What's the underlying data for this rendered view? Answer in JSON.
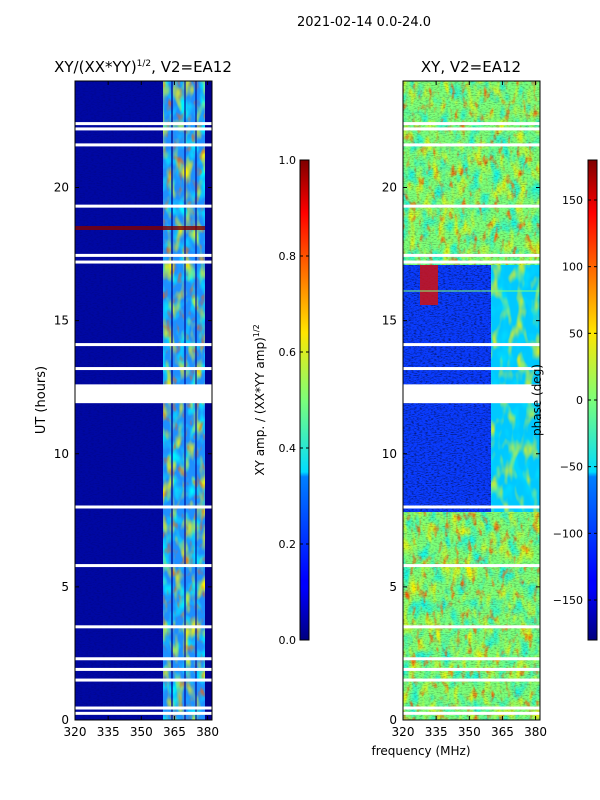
{
  "figure_title": "2021-02-14 0.0-24.0",
  "shared_xlabel": "frequency (MHz)",
  "chart_data": [
    {
      "type": "heatmap",
      "title_main": "XY/(XX*YY)",
      "title_exp": "1/2",
      "title_tail": ", V2=EA12",
      "xlabel": "",
      "ylabel": "UT (hours)",
      "xlim": [
        320,
        382
      ],
      "ylim": [
        0,
        24
      ],
      "xticks": [
        320,
        335,
        350,
        365,
        380
      ],
      "yticks": [
        0,
        5,
        10,
        15,
        20
      ],
      "colormap": "jet",
      "colorbar": {
        "label_main": "XY amp. / (XX*YY amp)",
        "label_exp": "1/2",
        "min": 0.0,
        "max": 1.0,
        "ticks": [
          0.0,
          0.2,
          0.4,
          0.6,
          0.8,
          1.0
        ],
        "tick_labels": [
          "0.0",
          "0.2",
          "0.4",
          "0.6",
          "0.8",
          "1.0"
        ]
      },
      "data_gaps_hours": [
        0.25,
        0.45,
        1.5,
        1.9,
        2.3,
        3.5,
        5.8,
        8.0,
        12.25,
        12.55,
        13.2,
        14.1,
        17.2,
        17.45,
        19.3,
        21.6,
        22.2,
        22.4
      ]
    },
    {
      "type": "heatmap",
      "title_main": "XY, V2=EA12",
      "xlabel": "",
      "ylabel": "",
      "xlim": [
        320,
        382
      ],
      "ylim": [
        0,
        24
      ],
      "xticks": [
        320,
        335,
        350,
        365,
        380
      ],
      "yticks": [
        0,
        5,
        10,
        15,
        20
      ],
      "colormap": "jet",
      "colorbar": {
        "label_main": "phase (deg)",
        "min": -180,
        "max": 180,
        "ticks": [
          -150,
          -100,
          -50,
          0,
          50,
          100,
          150
        ],
        "tick_labels": [
          "−150",
          "−100",
          "−50",
          "0",
          "50",
          "100",
          "150"
        ]
      },
      "data_gaps_hours": [
        0.25,
        0.45,
        1.5,
        1.9,
        2.3,
        3.5,
        5.8,
        8.0,
        12.25,
        12.55,
        13.2,
        14.1,
        17.2,
        17.45,
        19.3,
        21.6,
        22.2,
        22.4
      ]
    }
  ]
}
